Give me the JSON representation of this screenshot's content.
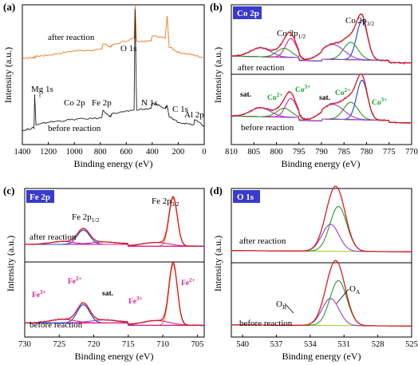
{
  "panel_labels": [
    "(a)",
    "(b)",
    "(c)",
    "(d)"
  ],
  "colors": {
    "after_survey": "#ee7a22",
    "before_survey": "#222222",
    "raw": "#000000",
    "envelope": "#d62020",
    "fit_blue": "#1f3fd0",
    "fit_purple": "#9a3fc8",
    "fit_green": "#2a9a2a",
    "fit_orange": "#ee7a22",
    "fit_magenta": "#e0208c",
    "background": "#9acd32",
    "box_fill": "#3a3acd",
    "co_label": "#1aa02a",
    "fe_label": "#e0208c"
  },
  "chart_data": [
    {
      "id": "a",
      "type": "line",
      "xlabel": "Binding energy (eV)",
      "ylabel": "Intensity (a.u.)",
      "xlim": [
        1400,
        0
      ],
      "xticks": [
        "1400",
        "1200",
        "1000",
        "800",
        "600",
        "400",
        "200",
        "0"
      ],
      "series": [
        {
          "name": "after reaction",
          "x": [
            1400,
            1310,
            1300,
            1200,
            1000,
            790,
            780,
            720,
            710,
            540,
            532,
            520,
            410,
            400,
            300,
            285,
            270,
            200,
            80,
            0
          ],
          "y": [
            0.62,
            0.62,
            0.63,
            0.64,
            0.67,
            0.68,
            0.72,
            0.7,
            0.71,
            0.76,
            1.0,
            0.74,
            0.74,
            0.78,
            0.76,
            0.92,
            0.7,
            0.66,
            0.64,
            0.62
          ]
        },
        {
          "name": "before reaction",
          "x": [
            1400,
            1310,
            1305,
            1295,
            1200,
            1000,
            790,
            780,
            720,
            710,
            540,
            532,
            520,
            410,
            400,
            300,
            285,
            270,
            200,
            80,
            75,
            0
          ],
          "y": [
            0.1,
            0.12,
            0.36,
            0.14,
            0.16,
            0.18,
            0.19,
            0.24,
            0.2,
            0.22,
            0.25,
            0.97,
            0.25,
            0.26,
            0.3,
            0.26,
            0.28,
            0.2,
            0.16,
            0.14,
            0.18,
            0.13
          ]
        }
      ],
      "annotations": [
        "after reaction",
        "O 1s",
        "Mg 1s",
        "Co 2p",
        "Fe 2p",
        "N 1s",
        "C 1s",
        "Al 2p",
        "before reaction"
      ]
    },
    {
      "id": "b",
      "type": "line",
      "title": "Co 2p",
      "xlabel": "Binding energy (eV)",
      "ylabel": "Intensity (a.u.)",
      "xlim": [
        810,
        770
      ],
      "xticks": [
        "810",
        "805",
        "800",
        "795",
        "790",
        "785",
        "780",
        "775",
        "770"
      ],
      "peaks": [
        {
          "name": "Co3+",
          "center": 781.0,
          "height": 0.8,
          "width": 1.2,
          "color": "fit_blue"
        },
        {
          "name": "Co2+",
          "center": 783.5,
          "height": 0.35,
          "width": 1.6,
          "color": "fit_green"
        },
        {
          "name": "sat.",
          "center": 787.5,
          "height": 0.3,
          "width": 2.5,
          "color": "fit_purple"
        },
        {
          "name": "Co3+",
          "center": 796.8,
          "height": 0.38,
          "width": 1.2,
          "color": "fit_magenta"
        },
        {
          "name": "Co2+",
          "center": 798.3,
          "height": 0.18,
          "width": 1.6,
          "color": "fit_green"
        },
        {
          "name": "sat.",
          "center": 803.5,
          "height": 0.18,
          "width": 2.2,
          "color": "fit_purple"
        }
      ],
      "upper_label": "after reaction",
      "lower_label": "before reaction",
      "peak_labels": [
        "Co 2p",
        "1/2",
        "3/2"
      ],
      "marker_labels": [
        "sat.",
        "Co",
        "2+",
        "3+"
      ]
    },
    {
      "id": "c",
      "type": "line",
      "title": "Fe 2p",
      "xlabel": "Binding energy (eV)",
      "ylabel": "Intensity (a.u.)",
      "xlim": [
        730,
        704
      ],
      "xticks": [
        "730",
        "725",
        "720",
        "715",
        "710",
        "705"
      ],
      "peaks": [
        {
          "name": "Fe2+",
          "center": 708.5,
          "height": 1.0,
          "width": 0.6,
          "color": "fit_orange"
        },
        {
          "name": "Fe3+",
          "center": 711.0,
          "height": 0.08,
          "width": 2.0,
          "color": "fit_magenta"
        },
        {
          "name": "sat.",
          "center": 718.5,
          "height": 0.05,
          "width": 2.0,
          "color": "fit_purple"
        },
        {
          "name": "Fe2+",
          "center": 721.5,
          "height": 0.3,
          "width": 0.9,
          "color": "fit_blue"
        },
        {
          "name": "Fe3+",
          "center": 724.5,
          "height": 0.06,
          "width": 1.8,
          "color": "fit_magenta"
        }
      ],
      "upper_label": "after reaction",
      "lower_label": "before reaction",
      "peak_labels": [
        "Fe 2p",
        "Fe 2p",
        "1/2",
        "3/2"
      ],
      "marker_labels": [
        "Fe",
        "3+",
        "2+",
        "sat."
      ]
    },
    {
      "id": "d",
      "type": "line",
      "title": "O 1s",
      "xlabel": "Binding energy (eV)",
      "ylabel": "Intensity (a.u.)",
      "xlim": [
        541,
        525
      ],
      "xticks": [
        "540",
        "537",
        "534",
        "531",
        "528",
        "525"
      ],
      "peaks": [
        {
          "name": "O_A",
          "center": 531.5,
          "height": 0.75,
          "width": 0.75,
          "color": "fit_green"
        },
        {
          "name": "O_B",
          "center": 532.2,
          "height": 0.45,
          "width": 0.75,
          "color": "fit_purple"
        }
      ],
      "upper_label": "after reaction",
      "lower_label": "before reaction",
      "marker_labels": [
        "O",
        "B",
        "A"
      ]
    }
  ]
}
